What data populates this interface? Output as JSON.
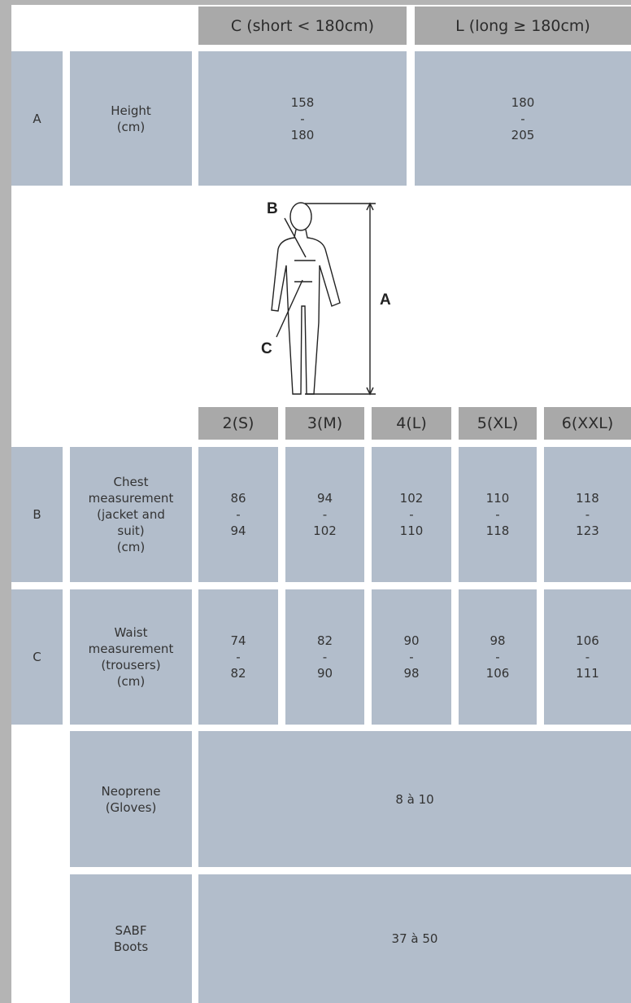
{
  "header": {
    "short": "C (short < 180cm)",
    "long": "L (long ≥ 180cm)"
  },
  "height_row": {
    "code": "A",
    "label": [
      "Height",
      "(cm)"
    ],
    "short": [
      "158",
      "-",
      "180"
    ],
    "long": [
      "180",
      "-",
      "205"
    ]
  },
  "figure": {
    "labels": [
      "B",
      "C",
      "A"
    ]
  },
  "sizes": [
    "2(S)",
    "3(M)",
    "4(L)",
    "5(XL)",
    "6(XXL)"
  ],
  "rows": [
    {
      "code": "B",
      "label": [
        "Chest",
        "measurement",
        "(jacket and",
        "suit)",
        "(cm)"
      ],
      "values": [
        [
          "86",
          "-",
          "94"
        ],
        [
          "94",
          "-",
          "102"
        ],
        [
          "102",
          "-",
          "110"
        ],
        [
          "110",
          "-",
          "118"
        ],
        [
          "118",
          "-",
          "123"
        ]
      ]
    },
    {
      "code": "C",
      "label": [
        "Waist",
        "measurement",
        "(trousers)",
        "(cm)"
      ],
      "values": [
        [
          "74",
          "-",
          "82"
        ],
        [
          "82",
          "-",
          "90"
        ],
        [
          "90",
          "-",
          "98"
        ],
        [
          "98",
          "-",
          "106"
        ],
        [
          "106",
          "-",
          "111"
        ]
      ]
    }
  ],
  "extras": [
    {
      "label": [
        "Neoprene",
        "(Gloves)"
      ],
      "value": "8 à 10"
    },
    {
      "label": [
        "SABF",
        "Boots"
      ],
      "value": "37 à 50"
    }
  ]
}
